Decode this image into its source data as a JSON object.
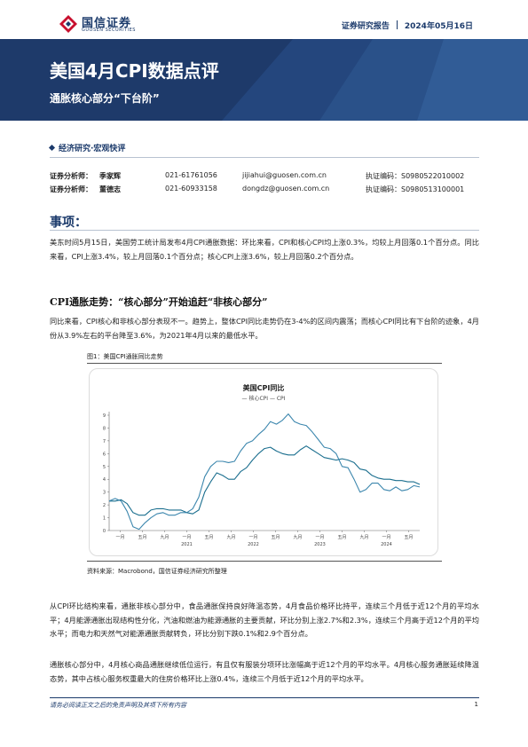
{
  "header": {
    "logo_cn": "国信证券",
    "logo_en": "GUOSEN SECURITIES",
    "report_type": "证券研究报告",
    "date": "2024年05月16日"
  },
  "banner": {
    "title": "美国4月CPI数据点评",
    "subtitle": "通胀核心部分“下台阶”"
  },
  "section_tag": "经济研究·宏观快评",
  "analysts": [
    {
      "label": "证券分析师：",
      "name": "季家辉",
      "phone": "021-61761056",
      "email": "jijiahui@guosen.com.cn",
      "cert": "执证编码：S0980522010002"
    },
    {
      "label": "证券分析师：",
      "name": "董德志",
      "phone": "021-60933158",
      "email": "dongdz@guosen.com.cn",
      "cert": "执证编码：S0980513100001"
    }
  ],
  "events": {
    "heading": "事项：",
    "paragraph": "美东时间5月15日，美国劳工统计局发布4月CPI通胀数据：环比来看，CPI和核心CPI均上涨0.3%，均较上月回落0.1个百分点。同比来看，CPI上涨3.4%，较上月回落0.1个百分点；核心CPI上涨3.6%，较上月回落0.2个百分点。"
  },
  "trend": {
    "heading": "CPI通胀走势：“核心部分”开始追赶“非核心部分”",
    "paragraph": "同比来看，CPI核心和非核心部分表现不一。趋势上，整体CPI同比走势仍在3-4%的区间内震荡；而核心CPI同比有下台阶的迹象，4月份从3.9%左右的平台降至3.6%，为2021年4月以来的最低水平。"
  },
  "figure": {
    "caption": "图1：美国CPI通胀同比走势",
    "source": "资料来源：Macrobond，国信证券经济研究所整理"
  },
  "chart_data": {
    "type": "line",
    "title": "美国CPI同比",
    "legend": "— 核心CPI — CPI",
    "y_ticks": [
      "9",
      "8",
      "7",
      "6",
      "5",
      "4",
      "3",
      "2",
      "1",
      "0"
    ],
    "ylim": [
      0,
      9
    ],
    "x_ticks": [
      "一月",
      "五月",
      "九月",
      "一月",
      "五月",
      "九月",
      "一月",
      "五月",
      "九月",
      "一月",
      "五月",
      "九月",
      "一月",
      "五月"
    ],
    "x_year_labels": [
      "2021",
      "2022",
      "2023",
      "2024"
    ],
    "colors": {
      "core": "#1a6e8e",
      "cpi": "#3b86ad"
    },
    "x": [
      "2019-12",
      "2020-01",
      "2020-02",
      "2020-03",
      "2020-04",
      "2020-05",
      "2020-06",
      "2020-07",
      "2020-08",
      "2020-09",
      "2020-10",
      "2020-11",
      "2020-12",
      "2021-01",
      "2021-02",
      "2021-03",
      "2021-04",
      "2021-05",
      "2021-06",
      "2021-07",
      "2021-08",
      "2021-09",
      "2021-10",
      "2021-11",
      "2021-12",
      "2022-01",
      "2022-02",
      "2022-03",
      "2022-04",
      "2022-05",
      "2022-06",
      "2022-07",
      "2022-08",
      "2022-09",
      "2022-10",
      "2022-11",
      "2022-12",
      "2023-01",
      "2023-02",
      "2023-03",
      "2023-04",
      "2023-05",
      "2023-06",
      "2023-07",
      "2023-08",
      "2023-09",
      "2023-10",
      "2023-11",
      "2023-12",
      "2024-01",
      "2024-02",
      "2024-03",
      "2024-04"
    ],
    "series": [
      {
        "key": "core",
        "values": [
          2.3,
          2.3,
          2.4,
          2.1,
          1.4,
          1.2,
          1.2,
          1.6,
          1.7,
          1.7,
          1.6,
          1.6,
          1.6,
          1.4,
          1.3,
          1.6,
          3.0,
          3.8,
          4.5,
          4.3,
          4.0,
          4.0,
          4.6,
          4.9,
          5.5,
          6.0,
          6.4,
          6.5,
          6.2,
          6.0,
          5.9,
          5.9,
          6.3,
          6.6,
          6.3,
          6.0,
          5.7,
          5.6,
          5.5,
          5.6,
          5.5,
          5.3,
          4.8,
          4.7,
          4.3,
          4.1,
          4.0,
          4.0,
          3.9,
          3.9,
          3.8,
          3.8,
          3.6
        ]
      },
      {
        "key": "cpi",
        "values": [
          2.3,
          2.5,
          2.3,
          1.5,
          0.3,
          0.1,
          0.6,
          1.0,
          1.3,
          1.4,
          1.2,
          1.2,
          1.4,
          1.4,
          1.7,
          2.6,
          4.2,
          5.0,
          5.4,
          5.4,
          5.3,
          5.4,
          6.2,
          6.8,
          7.0,
          7.5,
          7.9,
          8.5,
          8.3,
          8.6,
          9.1,
          8.5,
          8.3,
          8.2,
          7.7,
          7.1,
          6.5,
          6.4,
          6.0,
          5.0,
          4.9,
          4.0,
          3.0,
          3.2,
          3.7,
          3.7,
          3.2,
          3.1,
          3.4,
          3.1,
          3.2,
          3.5,
          3.4
        ]
      }
    ]
  },
  "analysis1": {
    "paragraph": "从CPI环比结构来看，通胀非核心部分中，食品通胀保持良好降温态势，4月食品价格环比持平，连续三个月低于近12个月的平均水平；4月能源通胀出现结构性分化，汽油和燃油为能源通胀的主要贡献，环比分别上涨2.7%和2.3%，连续三个月高于近12个月的平均水平；而电力和天然气对能源通胀贡献转负，环比分别下跌0.1%和2.9个百分点。"
  },
  "analysis2": {
    "paragraph": "通胀核心部分中，4月核心商品通胀继续低位运行，有且仅有服装分项环比涨幅高于近12个月的平均水平。4月核心服务通胀延续降温态势，其中占核心服务权重最大的住房价格环比上涨0.4%，连续三个月低于近12个月的平均水平。"
  },
  "footer": {
    "disclaimer": "请务必阅读正文之后的免责声明及其项下所有内容",
    "page": "1"
  }
}
